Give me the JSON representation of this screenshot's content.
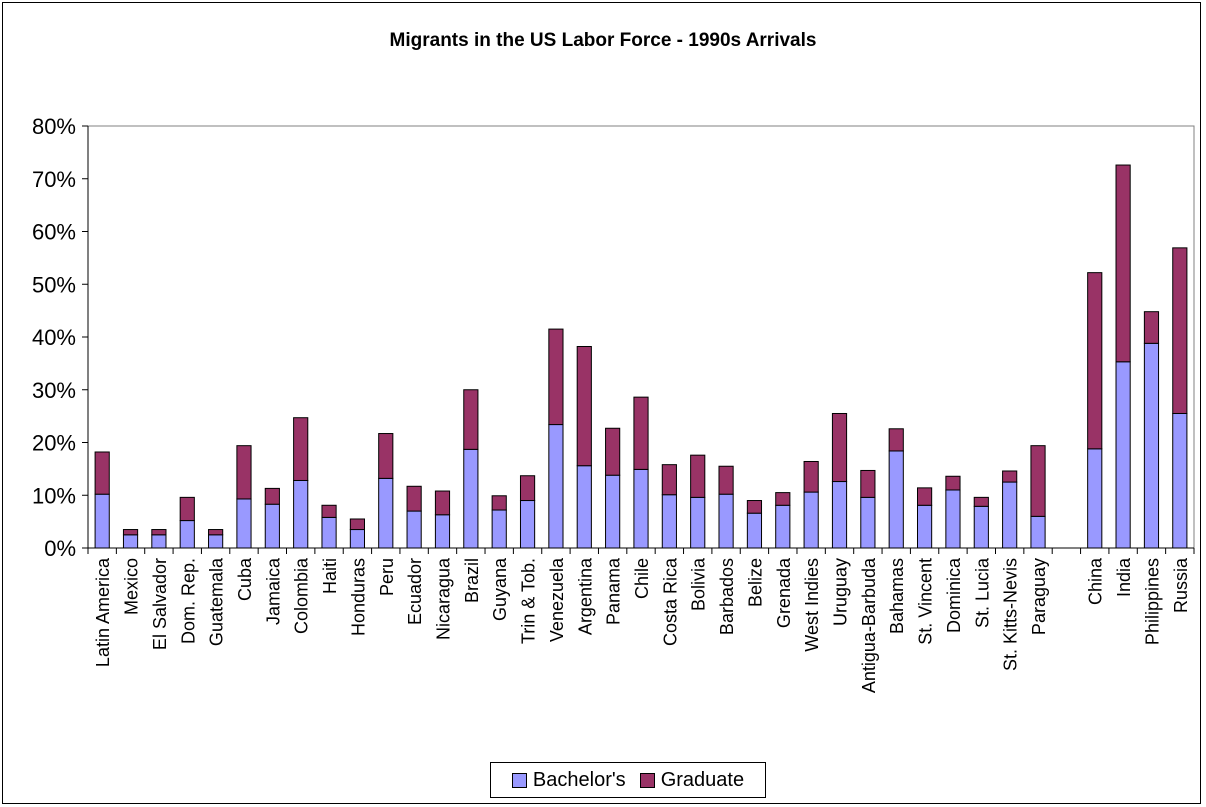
{
  "chart_data": {
    "type": "bar",
    "stacked": true,
    "title": "Migrants in the US Labor Force - 1990s Arrivals",
    "xlabel": "",
    "ylabel": "",
    "ylim": [
      0,
      80
    ],
    "yticks": [
      "0%",
      "10%",
      "20%",
      "30%",
      "40%",
      "50%",
      "60%",
      "70%",
      "80%"
    ],
    "grid": false,
    "legend_position": "bottom",
    "categories": [
      "Latin America",
      "Mexico",
      "El Salvador",
      "Dom. Rep.",
      "Guatemala",
      "Cuba",
      "Jamaica",
      "Colombia",
      "Haiti",
      "Honduras",
      "Peru",
      "Ecuador",
      "Nicaragua",
      "Brazil",
      "Guyana",
      "Trin & Tob.",
      "Venezuela",
      "Argentina",
      "Panama",
      "Chile",
      "Costa Rica",
      "Bolivia",
      "Barbados",
      "Belize",
      "Grenada",
      "West Indies",
      "Uruguay",
      "Antigua-Barbuda",
      "Bahamas",
      "St. Vincent",
      "Dominica",
      "St. Lucia",
      "St. Kitts-Nevis",
      "Paraguay",
      "",
      "China",
      "India",
      "Philippines",
      "Russia"
    ],
    "series": [
      {
        "name": "Bachelor's",
        "color": "#9999ff",
        "values": [
          10.2,
          2.5,
          2.5,
          5.2,
          2.5,
          9.3,
          8.3,
          12.8,
          5.8,
          3.5,
          13.2,
          7.0,
          6.3,
          18.7,
          7.2,
          9.0,
          23.4,
          15.6,
          13.8,
          14.9,
          10.1,
          9.6,
          10.2,
          6.6,
          8.1,
          10.6,
          12.6,
          9.6,
          18.4,
          8.1,
          11.0,
          7.9,
          12.5,
          6.0,
          0,
          18.8,
          35.3,
          38.8,
          25.5
        ]
      },
      {
        "name": "Graduate",
        "color": "#993366",
        "values": [
          8.0,
          1.0,
          1.0,
          4.4,
          1.0,
          10.1,
          3.0,
          11.9,
          2.3,
          2.0,
          8.5,
          4.7,
          4.5,
          11.3,
          2.7,
          4.7,
          18.1,
          22.6,
          8.9,
          13.7,
          5.7,
          8.0,
          5.3,
          2.4,
          2.4,
          5.8,
          12.9,
          5.1,
          4.2,
          3.3,
          2.6,
          1.7,
          2.1,
          13.4,
          0,
          33.4,
          37.3,
          6.0,
          31.4
        ]
      }
    ]
  },
  "legend": {
    "bachelors_label": "Bachelor's",
    "graduate_label": "Graduate"
  }
}
